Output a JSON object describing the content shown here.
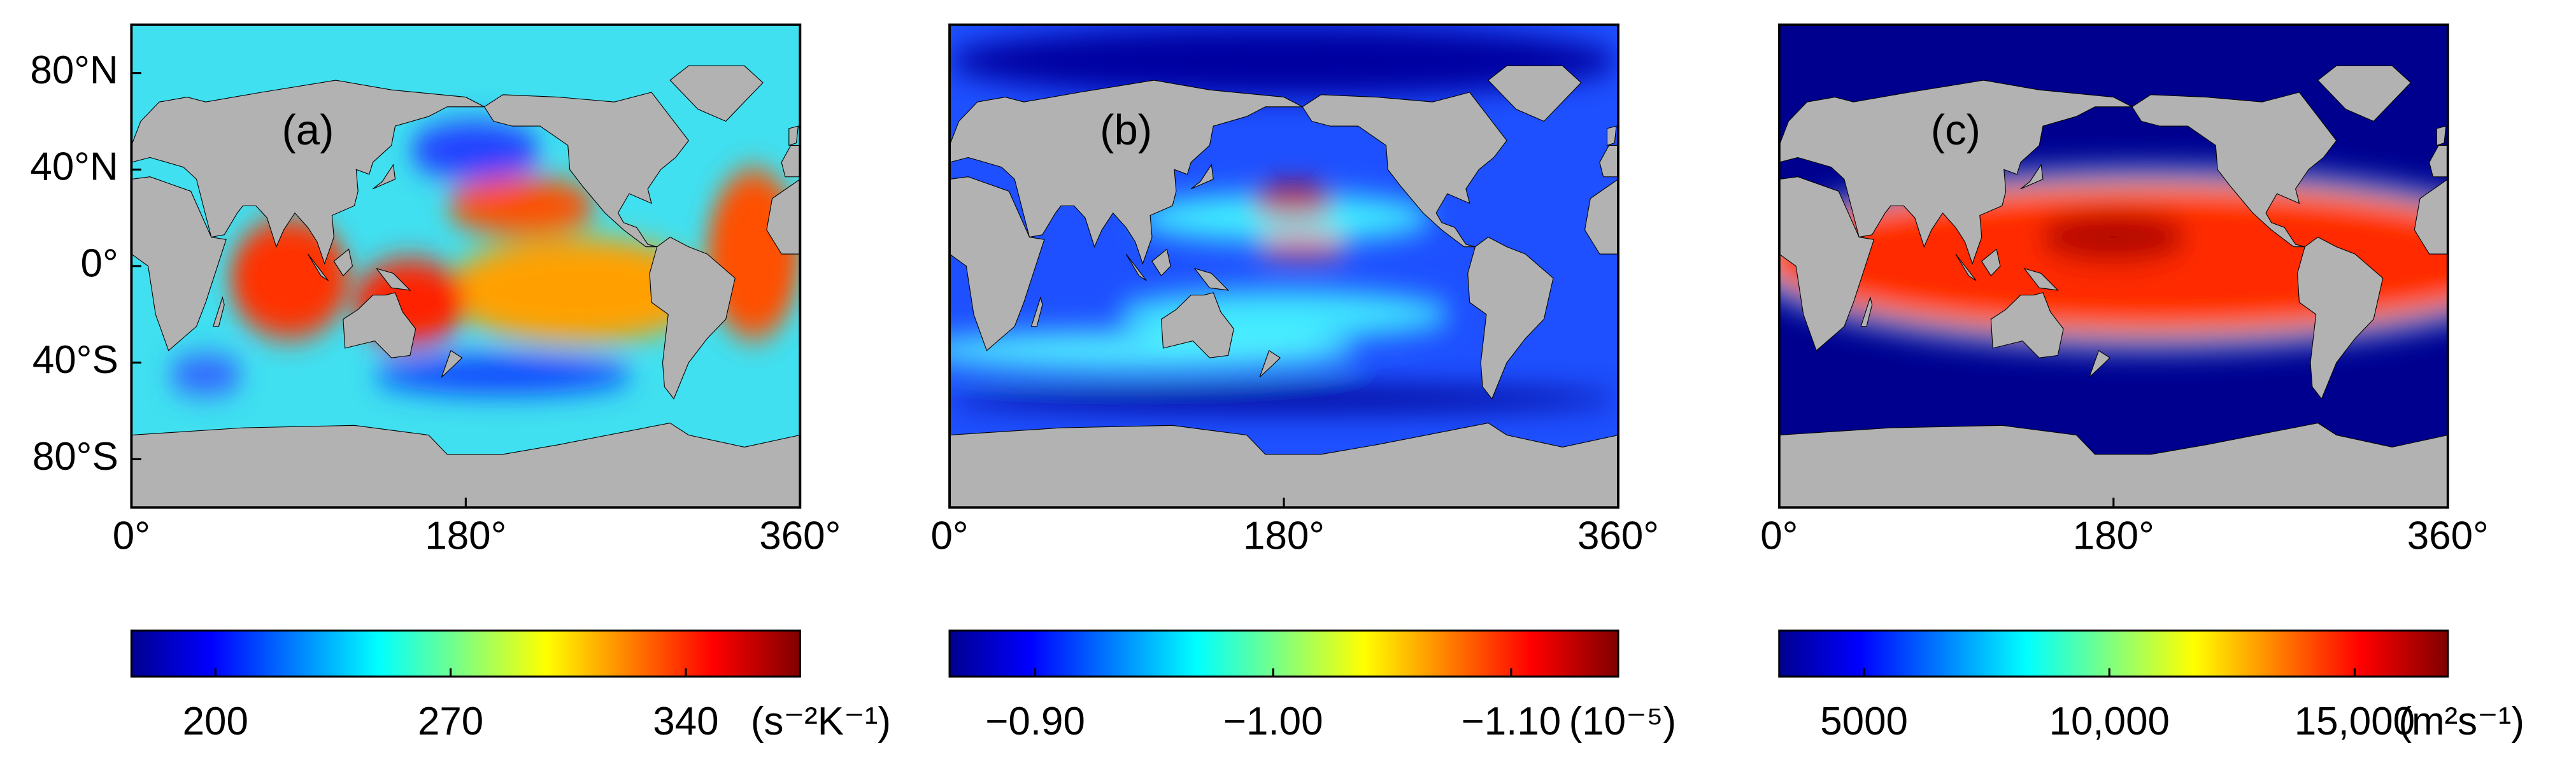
{
  "chart_data": [
    {
      "type": "map",
      "panel_label": "(a)",
      "xlim": [
        0,
        360
      ],
      "ylim": [
        -100,
        100
      ],
      "xticks": [
        {
          "value": 0,
          "label": "0°"
        },
        {
          "value": 180,
          "label": "180°"
        },
        {
          "value": 360,
          "label": "360°"
        }
      ],
      "yticks": [
        {
          "value": 80,
          "label": "80°N"
        },
        {
          "value": 40,
          "label": "40°N"
        },
        {
          "value": 0,
          "label": "0°"
        },
        {
          "value": -40,
          "label": "40°S"
        },
        {
          "value": -80,
          "label": "80°S"
        }
      ],
      "colorbar": {
        "clim": [
          175,
          374
        ],
        "ticks": [
          200,
          270,
          340
        ],
        "unit": "(s⁻²K⁻¹)"
      }
    },
    {
      "type": "map",
      "panel_label": "(b)",
      "xlim": [
        0,
        360
      ],
      "ylim": [
        -100,
        100
      ],
      "xticks": [
        {
          "value": 0,
          "label": "0°"
        },
        {
          "value": 180,
          "label": "180°"
        },
        {
          "value": 360,
          "label": "360°"
        }
      ],
      "colorbar": {
        "clim": [
          -0.864,
          -1.145
        ],
        "ticks": [
          {
            "value": -0.9,
            "label": "−0.90"
          },
          {
            "value": -1.0,
            "label": "−1.00"
          },
          {
            "value": -1.1,
            "label": "−1.10"
          }
        ],
        "unit": "(10⁻⁵)"
      }
    },
    {
      "type": "map",
      "panel_label": "(c)",
      "xlim": [
        0,
        360
      ],
      "ylim": [
        -100,
        100
      ],
      "xticks": [
        {
          "value": 0,
          "label": "0°"
        },
        {
          "value": 180,
          "label": "180°"
        },
        {
          "value": 360,
          "label": "360°"
        }
      ],
      "colorbar": {
        "clim": [
          3270,
          16900
        ],
        "ticks": [
          5000,
          {
            "value": 10000,
            "label": "10,000"
          },
          {
            "value": 15000,
            "label": "15,000"
          }
        ],
        "unit": "(m²s⁻¹)"
      }
    }
  ]
}
